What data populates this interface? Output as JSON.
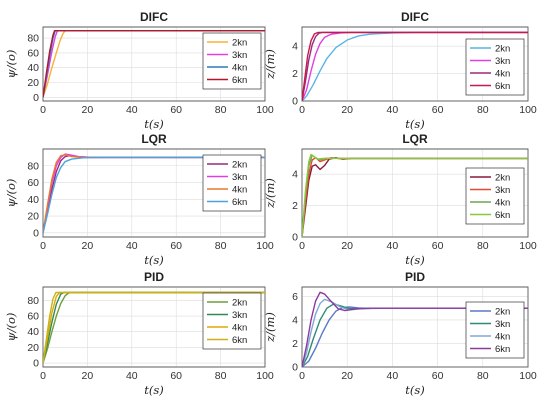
{
  "chart_data": [
    {
      "type": "line",
      "title": "DIFC",
      "xlabel": "t(s)",
      "ylabel": "ψ/(o)",
      "xlim": [
        0,
        100
      ],
      "ylim": [
        -5,
        95
      ],
      "xticks": [
        "0",
        "20",
        "40",
        "60",
        "80",
        "100"
      ],
      "yticks": [
        "0",
        "20",
        "40",
        "60",
        "80"
      ],
      "grid": true,
      "legend": "top-right",
      "series": [
        {
          "name": "2kn",
          "color": "#f5b334",
          "points": [
            [
              0,
              0
            ],
            [
              2,
              18
            ],
            [
              4,
              40
            ],
            [
              6,
              60
            ],
            [
              7.5,
              75
            ],
            [
              9,
              86
            ],
            [
              10,
              90
            ],
            [
              12,
              90
            ],
            [
              100,
              90
            ]
          ]
        },
        {
          "name": "3kn",
          "color": "#e040e0",
          "points": [
            [
              0,
              0
            ],
            [
              2,
              30
            ],
            [
              4,
              62
            ],
            [
              5.5,
              82
            ],
            [
              6.5,
              90
            ],
            [
              8,
              90
            ],
            [
              100,
              90
            ]
          ]
        },
        {
          "name": "4kn",
          "color": "#2c7bb6",
          "points": [
            [
              0,
              0
            ],
            [
              1.5,
              28
            ],
            [
              3,
              56
            ],
            [
              4.5,
              80
            ],
            [
              5.5,
              90
            ],
            [
              7,
              90
            ],
            [
              100,
              90
            ]
          ]
        },
        {
          "name": "6kn",
          "color": "#b2182b",
          "points": [
            [
              0,
              0
            ],
            [
              1.5,
              32
            ],
            [
              3,
              62
            ],
            [
              4.5,
              84
            ],
            [
              5.2,
              90
            ],
            [
              7,
              90
            ],
            [
              100,
              90
            ]
          ]
        }
      ]
    },
    {
      "type": "line",
      "title": "DIFC",
      "xlabel": "t(s)",
      "ylabel": "z/(m)",
      "xlim": [
        0,
        100
      ],
      "ylim": [
        0,
        5.4
      ],
      "xticks": [
        "0",
        "20",
        "40",
        "60",
        "80",
        "100"
      ],
      "yticks": [
        "0",
        "2",
        "4"
      ],
      "grid": true,
      "legend": "right",
      "series": [
        {
          "name": "2kn",
          "color": "#5ab4e6",
          "points": [
            [
              0,
              0
            ],
            [
              2,
              0.35
            ],
            [
              5,
              1.2
            ],
            [
              8,
              2.2
            ],
            [
              11,
              3.1
            ],
            [
              15,
              3.9
            ],
            [
              20,
              4.45
            ],
            [
              25,
              4.75
            ],
            [
              30,
              4.88
            ],
            [
              40,
              4.97
            ],
            [
              50,
              5.0
            ],
            [
              100,
              5.0
            ]
          ]
        },
        {
          "name": "3kn",
          "color": "#e040e0",
          "points": [
            [
              0,
              0
            ],
            [
              2,
              0.8
            ],
            [
              4,
              2.2
            ],
            [
              6,
              3.4
            ],
            [
              8,
              4.2
            ],
            [
              10,
              4.65
            ],
            [
              13,
              4.88
            ],
            [
              17,
              4.97
            ],
            [
              22,
              5.0
            ],
            [
              100,
              5.0
            ]
          ]
        },
        {
          "name": "4kn",
          "color": "#9b2a7b",
          "points": [
            [
              0,
              0
            ],
            [
              1.5,
              1.4
            ],
            [
              3,
              3.0
            ],
            [
              4.5,
              4.1
            ],
            [
              6,
              4.7
            ],
            [
              7.5,
              4.95
            ],
            [
              9,
              5.0
            ],
            [
              100,
              5.0
            ]
          ]
        },
        {
          "name": "6kn",
          "color": "#c51b4a",
          "points": [
            [
              0,
              0
            ],
            [
              1.2,
              1.6
            ],
            [
              2.5,
              3.3
            ],
            [
              4,
              4.4
            ],
            [
              5.5,
              4.9
            ],
            [
              7,
              5.0
            ],
            [
              100,
              5.0
            ]
          ]
        }
      ]
    },
    {
      "type": "line",
      "title": "LQR",
      "xlabel": "t(s)",
      "ylabel": "ψ/(o)",
      "xlim": [
        0,
        100
      ],
      "ylim": [
        -5,
        100
      ],
      "xticks": [
        "0",
        "20",
        "40",
        "60",
        "80",
        "100"
      ],
      "yticks": [
        "0",
        "20",
        "40",
        "60",
        "80"
      ],
      "grid": true,
      "legend": "top-right",
      "series": [
        {
          "name": "2kn",
          "color": "#9b2a7b",
          "points": [
            [
              0,
              0
            ],
            [
              2,
              25
            ],
            [
              4,
              52
            ],
            [
              6,
              73
            ],
            [
              8,
              86
            ],
            [
              10,
              91
            ],
            [
              12,
              92
            ],
            [
              15,
              91
            ],
            [
              20,
              90
            ],
            [
              100,
              90
            ]
          ]
        },
        {
          "name": "3kn",
          "color": "#e040e0",
          "points": [
            [
              0,
              0
            ],
            [
              2,
              30
            ],
            [
              4,
              60
            ],
            [
              6,
              80
            ],
            [
              8,
              90
            ],
            [
              10,
              94
            ],
            [
              12,
              93
            ],
            [
              16,
              91
            ],
            [
              22,
              90
            ],
            [
              100,
              90
            ]
          ]
        },
        {
          "name": "4kn",
          "color": "#e8772e",
          "points": [
            [
              0,
              0
            ],
            [
              2,
              33
            ],
            [
              4,
              64
            ],
            [
              6,
              84
            ],
            [
              8,
              92
            ],
            [
              10,
              93
            ],
            [
              13,
              91
            ],
            [
              18,
              90
            ],
            [
              100,
              90
            ]
          ]
        },
        {
          "name": "6kn",
          "color": "#4aa3df",
          "points": [
            [
              0,
              0
            ],
            [
              2,
              22
            ],
            [
              4,
              46
            ],
            [
              6,
              66
            ],
            [
              8,
              78
            ],
            [
              10,
              85
            ],
            [
              13,
              88
            ],
            [
              18,
              89.5
            ],
            [
              25,
              90
            ],
            [
              100,
              90
            ]
          ]
        }
      ]
    },
    {
      "type": "line",
      "title": "LQR",
      "xlabel": "t(s)",
      "ylabel": "z/(m)",
      "xlim": [
        0,
        100
      ],
      "ylim": [
        0,
        5.6
      ],
      "xticks": [
        "0",
        "20",
        "40",
        "60",
        "80",
        "100"
      ],
      "yticks": [
        "0",
        "2",
        "4"
      ],
      "grid": true,
      "legend": "right",
      "series": [
        {
          "name": "2kn",
          "color": "#8b1a3a",
          "points": [
            [
              0,
              0
            ],
            [
              1.5,
              1.8
            ],
            [
              3,
              3.6
            ],
            [
              4.5,
              4.5
            ],
            [
              6,
              4.6
            ],
            [
              8,
              4.3
            ],
            [
              10,
              4.55
            ],
            [
              12,
              4.95
            ],
            [
              15,
              5.05
            ],
            [
              18,
              4.95
            ],
            [
              22,
              5.0
            ],
            [
              100,
              5.0
            ]
          ]
        },
        {
          "name": "3kn",
          "color": "#e64a2e",
          "points": [
            [
              0,
              0
            ],
            [
              1.5,
              2.2
            ],
            [
              3,
              4.0
            ],
            [
              4.5,
              4.9
            ],
            [
              6,
              5.05
            ],
            [
              8,
              4.8
            ],
            [
              10,
              4.9
            ],
            [
              13,
              5.05
            ],
            [
              17,
              4.98
            ],
            [
              22,
              5.0
            ],
            [
              100,
              5.0
            ]
          ]
        },
        {
          "name": "4kn",
          "color": "#6aa84f",
          "points": [
            [
              0,
              0
            ],
            [
              1.5,
              2.6
            ],
            [
              3,
              4.5
            ],
            [
              4.5,
              5.2
            ],
            [
              6,
              5.05
            ],
            [
              8,
              4.9
            ],
            [
              10,
              5.0
            ],
            [
              14,
              5.02
            ],
            [
              20,
              5.0
            ],
            [
              100,
              5.0
            ]
          ]
        },
        {
          "name": "6kn",
          "color": "#8cc63f",
          "points": [
            [
              0,
              0
            ],
            [
              1.5,
              2.9
            ],
            [
              3,
              4.8
            ],
            [
              4,
              5.25
            ],
            [
              5.5,
              5.1
            ],
            [
              7,
              4.95
            ],
            [
              9,
              5.0
            ],
            [
              14,
              5.0
            ],
            [
              100,
              5.0
            ]
          ]
        }
      ]
    },
    {
      "type": "line",
      "title": "PID",
      "xlabel": "t(s)",
      "ylabel": "ψ/(o)",
      "xlim": [
        0,
        100
      ],
      "ylim": [
        -5,
        97
      ],
      "xticks": [
        "0",
        "20",
        "40",
        "60",
        "80",
        "100"
      ],
      "yticks": [
        "0",
        "20",
        "40",
        "60",
        "80"
      ],
      "grid": true,
      "legend": "top-right",
      "series": [
        {
          "name": "2kn",
          "color": "#6e9e3a",
          "points": [
            [
              0,
              0
            ],
            [
              2,
              18
            ],
            [
              4,
              40
            ],
            [
              6,
              60
            ],
            [
              8,
              76
            ],
            [
              10,
              86
            ],
            [
              12,
              90
            ],
            [
              14,
              90
            ],
            [
              100,
              90
            ]
          ]
        },
        {
          "name": "3kn",
          "color": "#2e8b57",
          "points": [
            [
              0,
              0
            ],
            [
              2,
              25
            ],
            [
              4,
              52
            ],
            [
              6,
              75
            ],
            [
              8,
              88
            ],
            [
              9.5,
              90
            ],
            [
              12,
              90
            ],
            [
              100,
              90
            ]
          ]
        },
        {
          "name": "4kn",
          "color": "#e0a800",
          "points": [
            [
              0,
              0
            ],
            [
              2,
              32
            ],
            [
              4,
              64
            ],
            [
              6,
              85
            ],
            [
              7.5,
              90
            ],
            [
              10,
              90
            ],
            [
              100,
              90
            ]
          ]
        },
        {
          "name": "6kn",
          "color": "#c9b21a",
          "points": [
            [
              0,
              0
            ],
            [
              1.5,
              30
            ],
            [
              3,
              60
            ],
            [
              4.5,
              82
            ],
            [
              5.8,
              90
            ],
            [
              8,
              90
            ],
            [
              100,
              90
            ]
          ]
        }
      ]
    },
    {
      "type": "line",
      "title": "PID",
      "xlabel": "t(s)",
      "ylabel": "z/(m)",
      "xlim": [
        0,
        100
      ],
      "ylim": [
        0,
        6.8
      ],
      "xticks": [
        "0",
        "20",
        "40",
        "60",
        "80",
        "100"
      ],
      "yticks": [
        "0",
        "2",
        "4",
        "6"
      ],
      "grid": true,
      "legend": "right",
      "series": [
        {
          "name": "2kn",
          "color": "#5a78c8",
          "points": [
            [
              0,
              0
            ],
            [
              3,
              0.5
            ],
            [
              6,
              1.6
            ],
            [
              9,
              2.9
            ],
            [
              12,
              4.0
            ],
            [
              15,
              4.75
            ],
            [
              18,
              5.05
            ],
            [
              21,
              5.1
            ],
            [
              25,
              5.02
            ],
            [
              30,
              4.98
            ],
            [
              40,
              5.0
            ],
            [
              100,
              5.0
            ]
          ]
        },
        {
          "name": "3kn",
          "color": "#2e8b74",
          "points": [
            [
              0,
              0
            ],
            [
              2.5,
              0.9
            ],
            [
              5,
              2.4
            ],
            [
              8,
              4.0
            ],
            [
              11,
              5.0
            ],
            [
              14,
              5.35
            ],
            [
              17,
              5.2
            ],
            [
              21,
              4.95
            ],
            [
              26,
              4.95
            ],
            [
              32,
              5.0
            ],
            [
              100,
              5.0
            ]
          ]
        },
        {
          "name": "4kn",
          "color": "#7fa8d8",
          "points": [
            [
              0,
              0
            ],
            [
              2,
              1.2
            ],
            [
              4,
              3.0
            ],
            [
              6,
              4.5
            ],
            [
              8,
              5.4
            ],
            [
              10,
              5.75
            ],
            [
              13,
              5.55
            ],
            [
              17,
              5.1
            ],
            [
              21,
              4.85
            ],
            [
              26,
              4.95
            ],
            [
              32,
              5.0
            ],
            [
              100,
              5.0
            ]
          ]
        },
        {
          "name": "6kn",
          "color": "#8b3a9e",
          "points": [
            [
              0,
              0
            ],
            [
              2,
              1.8
            ],
            [
              4,
              4.0
            ],
            [
              6,
              5.6
            ],
            [
              8,
              6.35
            ],
            [
              10,
              6.2
            ],
            [
              13,
              5.55
            ],
            [
              16,
              4.95
            ],
            [
              19,
              4.8
            ],
            [
              24,
              4.95
            ],
            [
              30,
              5.0
            ],
            [
              100,
              5.0
            ]
          ]
        }
      ]
    }
  ]
}
